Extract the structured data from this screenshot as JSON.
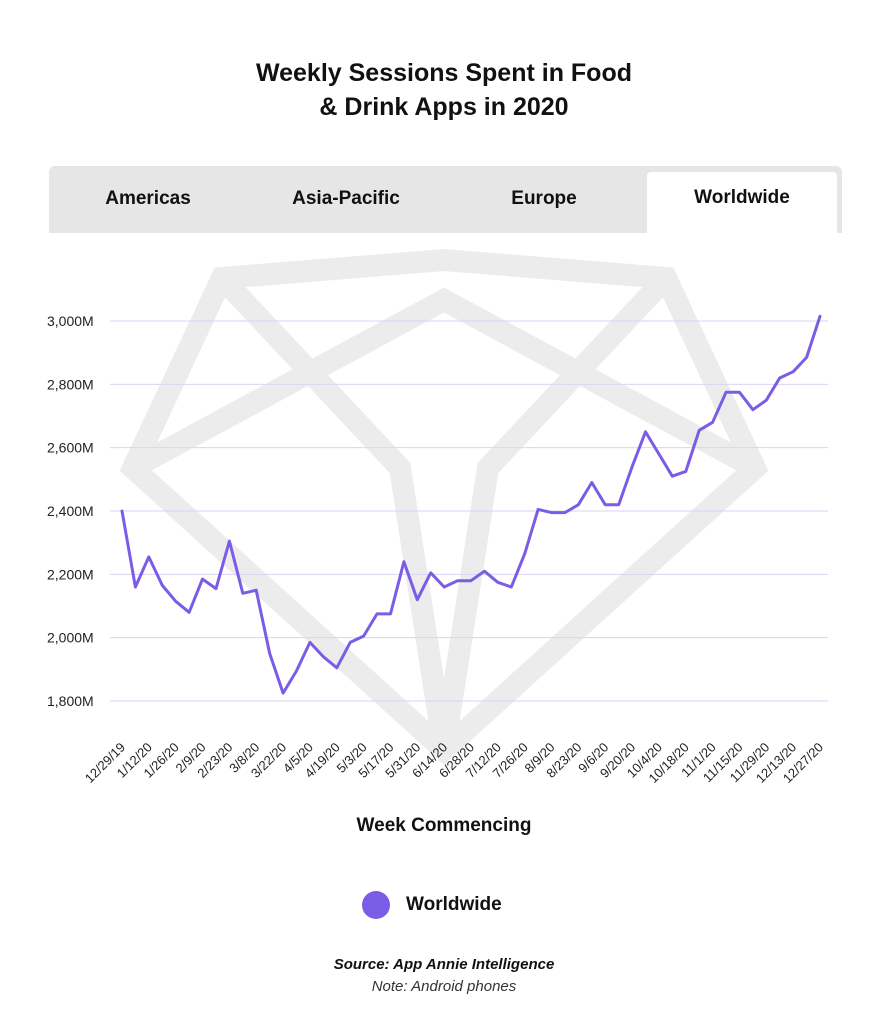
{
  "title_lines": [
    "Weekly Sessions Spent in Food",
    "& Drink Apps in 2020"
  ],
  "tabs": [
    {
      "label": "Americas",
      "active": false
    },
    {
      "label": "Asia-Pacific",
      "active": false
    },
    {
      "label": "Europe",
      "active": false
    },
    {
      "label": "Worldwide",
      "active": true
    }
  ],
  "colors": {
    "line": "#7b5ce6",
    "grid": "#d9d4f5",
    "tab_bg": "#e6e6e6",
    "watermark": "#ececec"
  },
  "watermark_icon": "diamond-logo-icon",
  "legend": {
    "label": "Worldwide"
  },
  "source": "Source: App Annie Intelligence",
  "note": "Note: Android phones",
  "chart_data": {
    "type": "line",
    "title": "Weekly Sessions Spent in Food & Drink Apps in 2020",
    "xlabel": "Week Commencing",
    "ylabel": "",
    "ylim": [
      1800,
      3000
    ],
    "grid": true,
    "legend_position": "bottom-center",
    "y_ticks": [
      3000,
      2800,
      2600,
      2400,
      2200,
      2000,
      1800
    ],
    "y_tick_labels": [
      "3,000M",
      "2,800M",
      "2,600M",
      "2,400M",
      "2,200M",
      "2,000M",
      "1,800M"
    ],
    "x_tick_labels": [
      "12/29/19",
      "1/12/20",
      "1/26/20",
      "2/9/20",
      "2/23/20",
      "3/8/20",
      "3/22/20",
      "4/5/20",
      "4/19/20",
      "5/3/20",
      "5/17/20",
      "5/31/20",
      "6/14/20",
      "6/28/20",
      "7/12/20",
      "7/26/20",
      "8/9/20",
      "8/23/20",
      "9/6/20",
      "9/20/20",
      "10/4/20",
      "10/18/20",
      "11/1/20",
      "11/15/20",
      "11/29/20",
      "12/13/20",
      "12/27/20"
    ],
    "series": [
      {
        "name": "Worldwide",
        "x": [
          "12/29/19",
          "1/5/20",
          "1/12/20",
          "1/19/20",
          "1/26/20",
          "2/2/20",
          "2/9/20",
          "2/16/20",
          "2/23/20",
          "3/1/20",
          "3/8/20",
          "3/15/20",
          "3/22/20",
          "3/29/20",
          "4/5/20",
          "4/12/20",
          "4/19/20",
          "4/26/20",
          "5/3/20",
          "5/10/20",
          "5/17/20",
          "5/24/20",
          "5/31/20",
          "6/7/20",
          "6/14/20",
          "6/21/20",
          "6/28/20",
          "7/5/20",
          "7/12/20",
          "7/19/20",
          "7/26/20",
          "8/2/20",
          "8/9/20",
          "8/16/20",
          "8/23/20",
          "8/30/20",
          "9/6/20",
          "9/13/20",
          "9/20/20",
          "9/27/20",
          "10/4/20",
          "10/11/20",
          "10/18/20",
          "10/25/20",
          "11/1/20",
          "11/8/20",
          "11/15/20",
          "11/22/20",
          "11/29/20",
          "12/6/20",
          "12/13/20",
          "12/20/20",
          "12/27/20"
        ],
        "values": [
          2400,
          2160,
          2255,
          2165,
          2115,
          2080,
          2185,
          2155,
          2305,
          2140,
          2150,
          1950,
          1825,
          1895,
          1985,
          1940,
          1905,
          1985,
          2005,
          2075,
          2075,
          2240,
          2120,
          2205,
          2160,
          2180,
          2180,
          2210,
          2175,
          2160,
          2265,
          2405,
          2395,
          2395,
          2420,
          2490,
          2420,
          2420,
          2540,
          2650,
          2580,
          2510,
          2525,
          2655,
          2680,
          2775,
          2775,
          2720,
          2750,
          2820,
          2840,
          2885,
          3015
        ]
      }
    ]
  }
}
